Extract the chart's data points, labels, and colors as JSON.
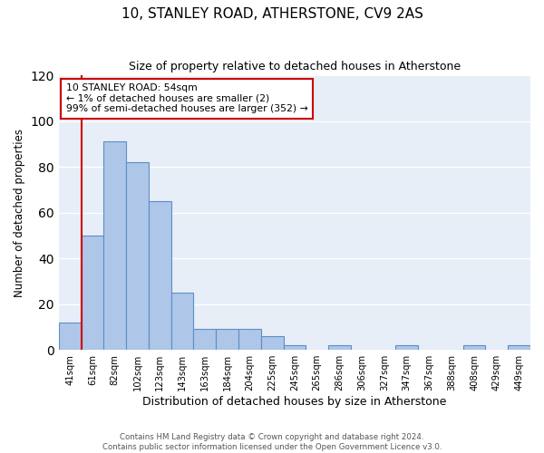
{
  "title": "10, STANLEY ROAD, ATHERSTONE, CV9 2AS",
  "subtitle": "Size of property relative to detached houses in Atherstone",
  "xlabel": "Distribution of detached houses by size in Atherstone",
  "ylabel": "Number of detached properties",
  "bar_labels": [
    "41sqm",
    "61sqm",
    "82sqm",
    "102sqm",
    "123sqm",
    "143sqm",
    "163sqm",
    "184sqm",
    "204sqm",
    "225sqm",
    "245sqm",
    "265sqm",
    "286sqm",
    "306sqm",
    "327sqm",
    "347sqm",
    "367sqm",
    "388sqm",
    "408sqm",
    "429sqm",
    "449sqm"
  ],
  "bar_heights": [
    12,
    50,
    91,
    82,
    65,
    25,
    9,
    9,
    9,
    6,
    2,
    0,
    2,
    0,
    0,
    2,
    0,
    0,
    2,
    0,
    2
  ],
  "bar_color": "#aec6e8",
  "bar_edge_color": "#5b8fc9",
  "ylim": [
    0,
    120
  ],
  "yticks": [
    0,
    20,
    40,
    60,
    80,
    100,
    120
  ],
  "annotation_title": "10 STANLEY ROAD: 54sqm",
  "annotation_line1": "← 1% of detached houses are smaller (2)",
  "annotation_line2": "99% of semi-detached houses are larger (352) →",
  "annotation_box_color": "#ffffff",
  "annotation_box_edge_color": "#cc0000",
  "red_line_x": 0.5,
  "background_color": "#e8eef7",
  "footer1": "Contains HM Land Registry data © Crown copyright and database right 2024.",
  "footer2": "Contains public sector information licensed under the Open Government Licence v3.0."
}
